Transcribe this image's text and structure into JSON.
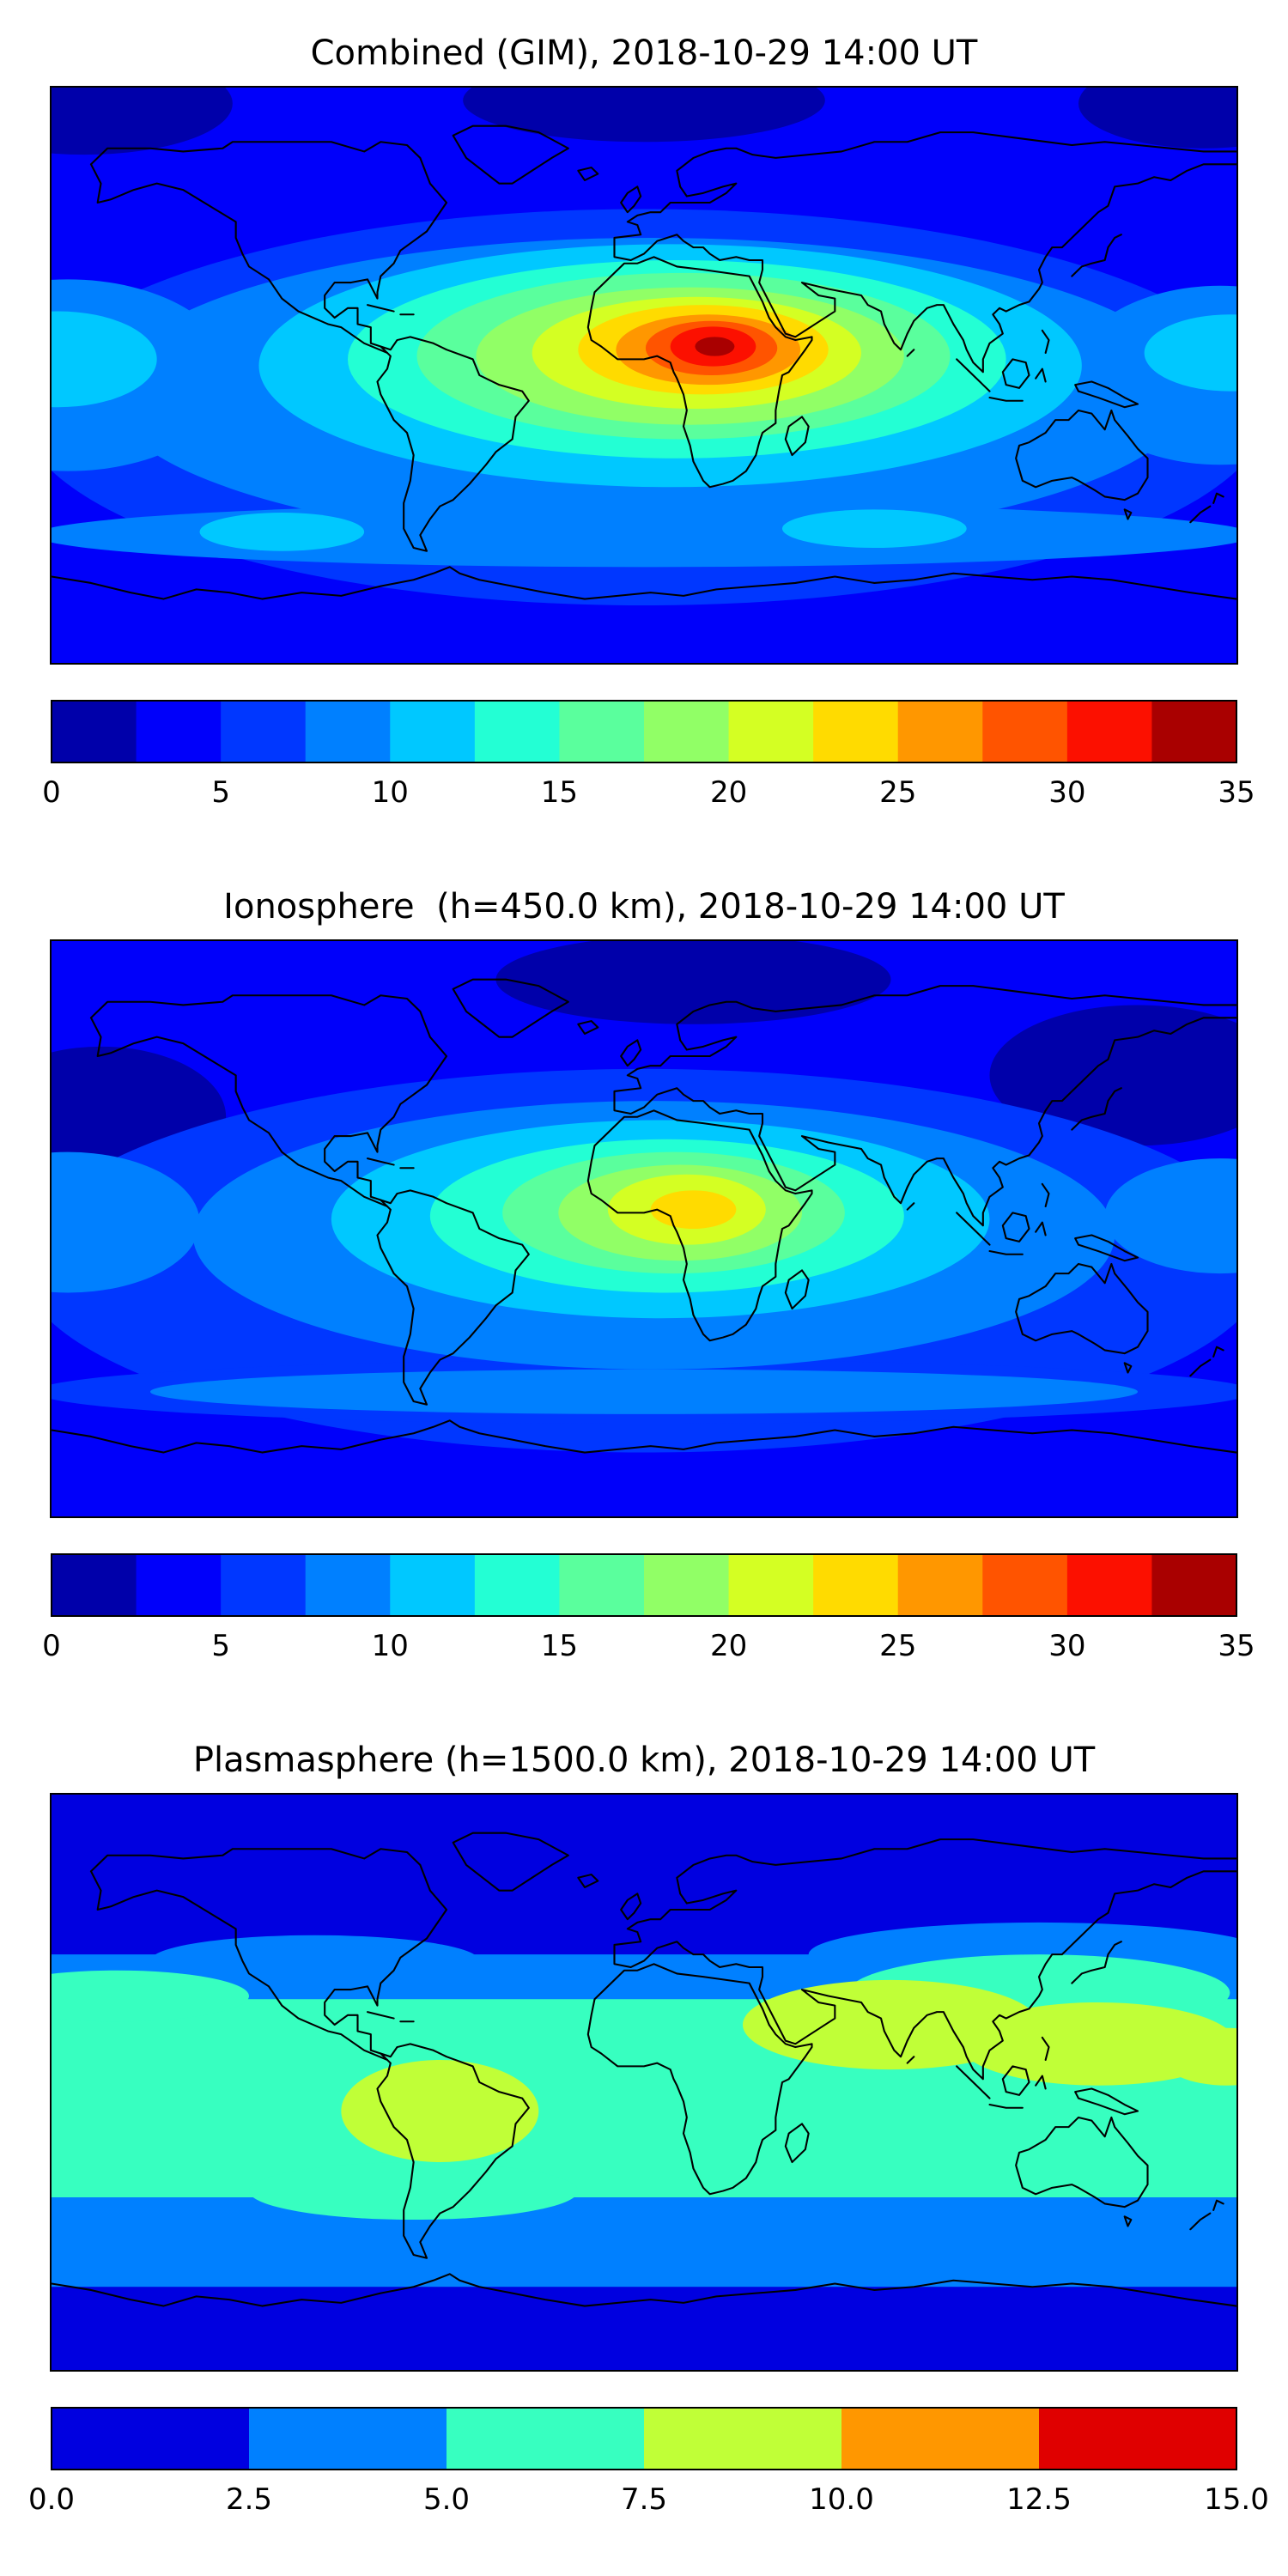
{
  "palettes": {
    "p14": [
      "#0000AA",
      "#0000FA",
      "#0037FF",
      "#0080FF",
      "#00C8FF",
      "#23FFD4",
      "#5AFF9D",
      "#91FF66",
      "#D4FF23",
      "#FFDB00",
      "#FF9700",
      "#FF5400",
      "#FC1000",
      "#A90000"
    ],
    "p6": [
      "#0000E0",
      "#0080FF",
      "#37FFC0",
      "#C0FF37",
      "#FF9700",
      "#E00000"
    ]
  },
  "chart_data": [
    {
      "type": "heatmap",
      "title": "Combined (GIM), 2018-10-29 14:00 UT",
      "projection": "equirectangular world map",
      "lon_range": [
        -180,
        180
      ],
      "lat_range": [
        -90,
        90
      ],
      "colormap": "jet",
      "palette": "p14",
      "value_range": [
        0,
        35
      ],
      "contour_step": 2.5,
      "colorbar_ticks": [
        0,
        5,
        10,
        15,
        20,
        25,
        30,
        35
      ],
      "colorbar_tick_labels": [
        "0",
        "5",
        "10",
        "15",
        "20",
        "25",
        "30",
        "35"
      ],
      "peak": {
        "value": 33,
        "lon": 20,
        "lat": 8,
        "region": "central Africa"
      },
      "pattern": "Strong hotspot (up to ~33, red core) centered over central Africa with concentric east-west elongated contour rings (orange, yellow, green, cyan) extending from South America to the Indian Ocean; background ~2.5-7.5 (blue) at northern mid/high latitudes; darkest (<2.5) patches near the poles; secondary brighter band (~7.5-12.5) over the southern mid-latitude oceans."
    },
    {
      "type": "heatmap",
      "title": "Ionosphere  (h=450.0 km), 2018-10-29 14:00 UT",
      "projection": "equirectangular world map",
      "lon_range": [
        -180,
        180
      ],
      "lat_range": [
        -90,
        90
      ],
      "colormap": "jet",
      "palette": "p14",
      "value_range": [
        0,
        35
      ],
      "contour_step": 2.5,
      "colorbar_ticks": [
        0,
        5,
        10,
        15,
        20,
        25,
        30,
        35
      ],
      "colorbar_tick_labels": [
        "0",
        "5",
        "10",
        "15",
        "20",
        "25",
        "30",
        "35"
      ],
      "peak": {
        "value": 24,
        "lon": 13,
        "lat": 6,
        "region": "central Africa"
      },
      "pattern": "Weaker version of the combined map: hotspot over central Africa peaking in the yellow band (~22.5-25) surrounded by green and cyan rings reaching eastern South America; blue background elsewhere; dark (<2.5) regions over the north-central Arctic, the eastern mid-latitude Pacific and northeast Asia."
    },
    {
      "type": "heatmap",
      "title": "Plasmasphere (h=1500.0 km), 2018-10-29 14:00 UT",
      "projection": "equirectangular world map",
      "lon_range": [
        -180,
        180
      ],
      "lat_range": [
        -90,
        90
      ],
      "colormap": "jet",
      "palette": "p6",
      "value_range": [
        0,
        15
      ],
      "contour_step": 2.5,
      "colorbar_ticks": [
        0,
        2.5,
        5,
        7.5,
        10,
        12.5,
        15
      ],
      "colorbar_tick_labels": [
        "0.0",
        "2.5",
        "5.0",
        "7.5",
        "10.0",
        "12.5",
        "15.0"
      ],
      "peak": {
        "value": 10,
        "lon": 100,
        "lat": 15,
        "region": "southern Asia / western Pacific and South America"
      },
      "pattern": "Zonally banded structure: dark blue (<2.5) polar caps, blue (2.5-5) mid-latitude belts, broad turquoise (5-7.5) equatorial belt, and yellow-green (7.5-10) enhancements over South America and a large one stretching from Arabia across South/Southeast Asia to the western Pacific; no values above ~10."
    }
  ]
}
